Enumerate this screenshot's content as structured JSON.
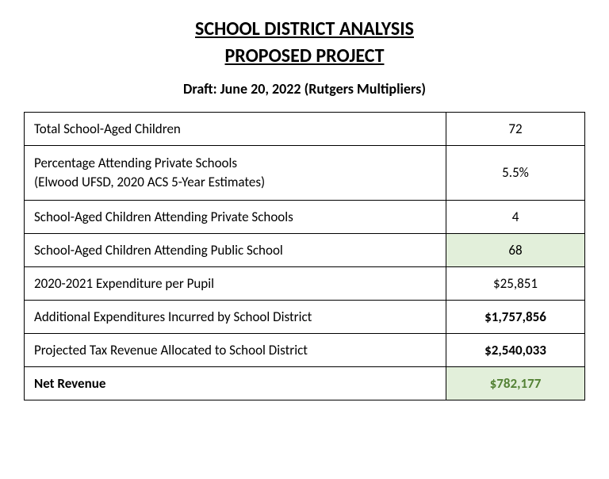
{
  "title_line1": "SCHOOL DISTRICT ANALYSIS",
  "title_line2": "PROPOSED PROJECT",
  "subtitle": "Draft: June 20, 2022 (Rutgers Multipliers)",
  "rows": [
    {
      "label": "Total School-Aged Children",
      "value": "72",
      "label_bold": false,
      "value_bold": false,
      "value_highlight": false,
      "sublabel": ""
    },
    {
      "label": "Percentage Attending Private Schools",
      "sublabel": "(Elwood UFSD, 2020 ACS 5-Year Estimates)",
      "value": "5.5%",
      "label_bold": false,
      "value_bold": false,
      "value_highlight": false
    },
    {
      "label": "School-Aged Children Attending Private Schools",
      "value": "4",
      "label_bold": false,
      "value_bold": false,
      "value_highlight": false,
      "sublabel": ""
    },
    {
      "label": "School-Aged Children Attending Public School",
      "value": "68",
      "label_bold": false,
      "value_bold": false,
      "value_highlight": true,
      "sublabel": ""
    },
    {
      "label": "2020-2021 Expenditure per Pupil",
      "value": "$25,851",
      "label_bold": false,
      "value_bold": false,
      "value_highlight": false,
      "sublabel": ""
    },
    {
      "label": "Additional Expenditures Incurred by School District",
      "value": "$1,757,856",
      "label_bold": false,
      "value_bold": true,
      "value_highlight": false,
      "sublabel": ""
    },
    {
      "label": "Projected Tax Revenue Allocated to School District",
      "value": "$2,540,033",
      "label_bold": false,
      "value_bold": true,
      "value_highlight": false,
      "sublabel": ""
    },
    {
      "label": "Net Revenue",
      "value": "$782,177",
      "label_bold": true,
      "value_bold": true,
      "value_highlight": true,
      "is_net": true,
      "sublabel": ""
    }
  ],
  "colors": {
    "highlight": "#e2efda",
    "net_text": "#548235",
    "border": "#000000",
    "text": "#000000"
  }
}
